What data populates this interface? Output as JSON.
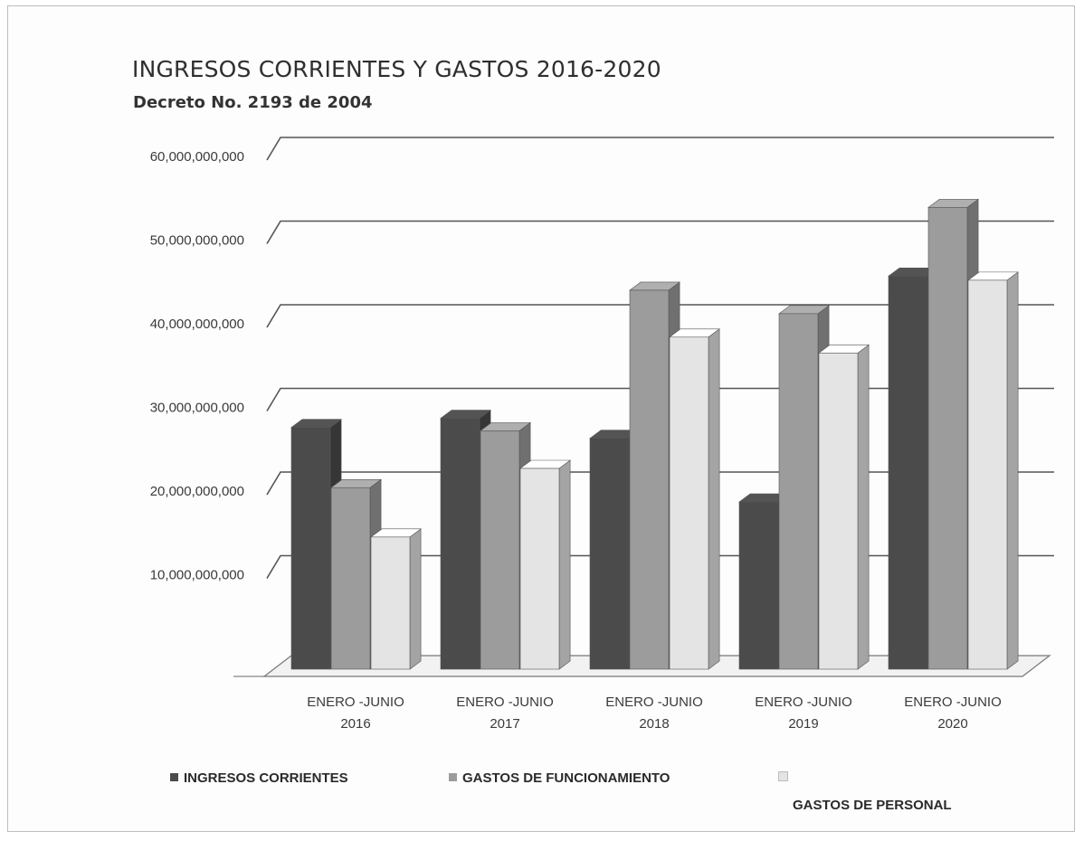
{
  "title": "INGRESOS CORRIENTES Y GASTOS  2016-2020",
  "subtitle": "Decreto No. 2193 de 2004",
  "chart_data": {
    "type": "bar",
    "categories": [
      [
        "ENERO -JUNIO",
        "2016"
      ],
      [
        "ENERO -JUNIO",
        "2017"
      ],
      [
        "ENERO -JUNIO",
        "2018"
      ],
      [
        "ENERO -JUNIO",
        "2019"
      ],
      [
        "ENERO -JUNIO",
        "2020"
      ]
    ],
    "yticks": [
      "60,000,000,000",
      "50,000,000,000",
      "40,000,000,000",
      "30,000,000,000",
      "20,000,000,000",
      "10,000,000,000"
    ],
    "ylim": [
      0,
      60000000000
    ],
    "series": [
      {
        "name": "INGRESOS CORRIENTES",
        "values": [
          28900000000,
          30000000000,
          27600000000,
          20000000000,
          47000000000
        ],
        "color": "#4b4b4b"
      },
      {
        "name": "GASTOS DE FUNCIONAMIENTO",
        "values": [
          21700000000,
          28500000000,
          45300000000,
          42500000000,
          55200000000
        ],
        "color": "#9c9c9c"
      },
      {
        "name": "GASTOS DE PERSONAL",
        "values": [
          15800000000,
          24000000000,
          39700000000,
          37800000000,
          46500000000
        ],
        "color": "#e4e4e4"
      }
    ],
    "grid": true,
    "legend_position": "bottom"
  }
}
